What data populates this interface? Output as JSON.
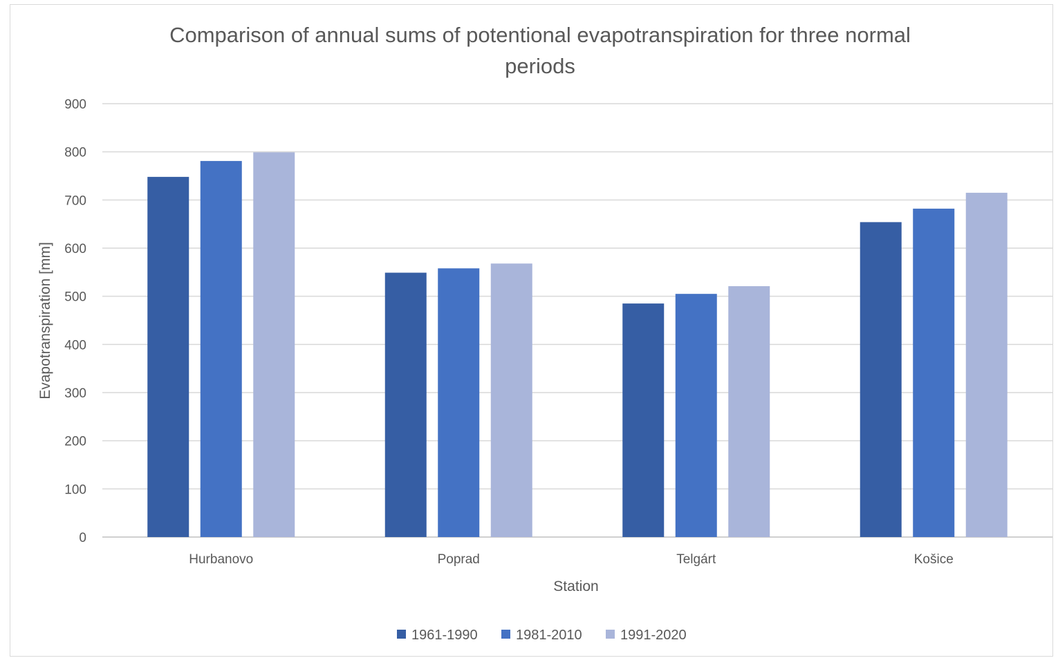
{
  "chart_data": {
    "type": "bar",
    "title": "Comparison of annual sums of potentional evapotranspiration for three normal periods",
    "title_lines": [
      "Comparison of annual sums of potentional evapotranspiration for three normal",
      "periods"
    ],
    "xlabel": "Station",
    "ylabel": "Evapotranspiration [mm]",
    "ylim": [
      0,
      900
    ],
    "yticks": [
      0,
      100,
      200,
      300,
      400,
      500,
      600,
      700,
      800,
      900
    ],
    "grid": true,
    "legend_position": "bottom",
    "categories": [
      "Hurbanovo",
      "Poprad",
      "Telgárt",
      "Košice"
    ],
    "series": [
      {
        "name": "1961-1990",
        "color": "#365ea4",
        "values": [
          748,
          549,
          485,
          654
        ]
      },
      {
        "name": "1981-2010",
        "color": "#4472c4",
        "values": [
          781,
          558,
          505,
          682
        ]
      },
      {
        "name": "1991-2020",
        "color": "#a9b5da",
        "values": [
          799,
          568,
          521,
          715
        ]
      }
    ]
  }
}
